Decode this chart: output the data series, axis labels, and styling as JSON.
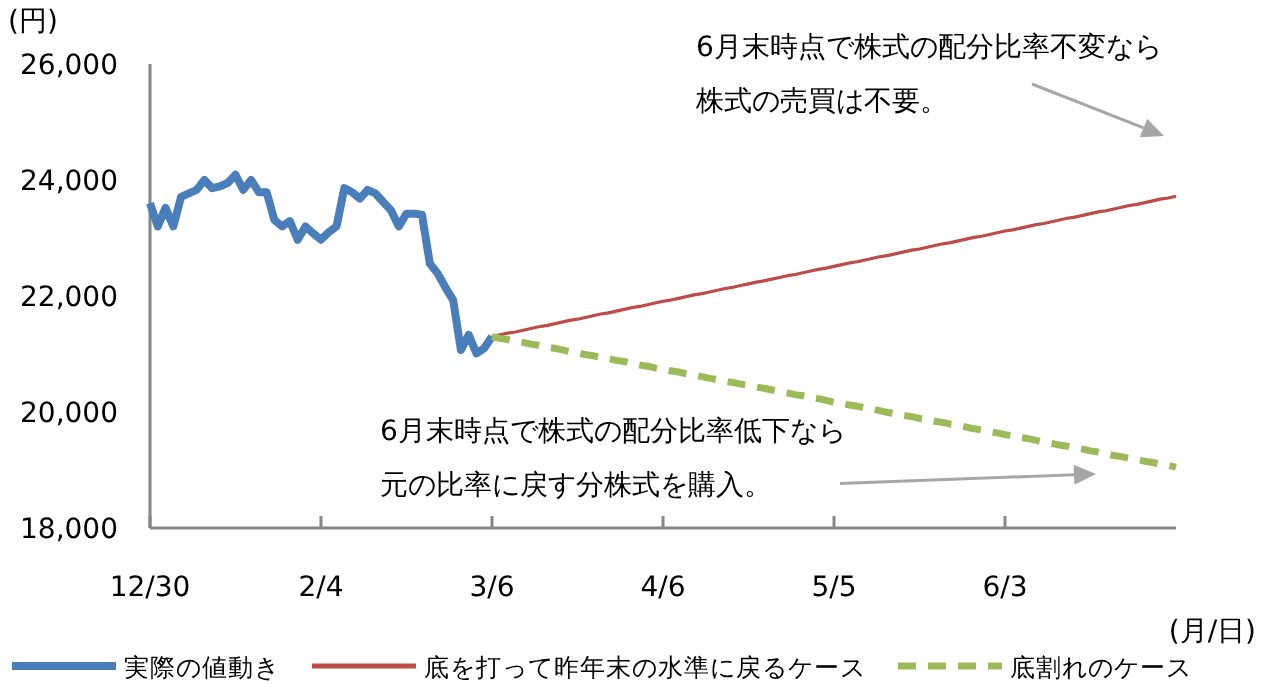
{
  "chart_data": {
    "type": "line",
    "ylabel": "(円)",
    "xlabel": "(月/日)",
    "categories": [
      "12/30",
      null,
      null,
      null,
      null,
      null,
      null,
      null,
      null,
      null,
      null,
      null,
      null,
      null,
      null,
      null,
      null,
      null,
      null,
      null,
      null,
      null,
      "2/4",
      null,
      null,
      null,
      null,
      null,
      null,
      null,
      null,
      null,
      null,
      null,
      null,
      null,
      null,
      null,
      null,
      null,
      null,
      null,
      null,
      null,
      "3/6",
      null,
      null,
      null,
      null,
      null,
      null,
      null,
      null,
      null,
      null,
      null,
      null,
      null,
      null,
      null,
      null,
      null,
      null,
      null,
      null,
      null,
      "4/6",
      null,
      null,
      null,
      null,
      null,
      null,
      null,
      null,
      null,
      null,
      null,
      null,
      null,
      null,
      null,
      null,
      null,
      null,
      null,
      null,
      null,
      "5/5",
      null,
      null,
      null,
      null,
      null,
      null,
      null,
      null,
      null,
      null,
      null,
      null,
      null,
      null,
      null,
      null,
      null,
      null,
      null,
      null,
      null,
      "6/3",
      null,
      null,
      null,
      null,
      null,
      null,
      null,
      null,
      null,
      null,
      null,
      null,
      null,
      null,
      null,
      null,
      null,
      null,
      null,
      null,
      null,
      null
    ],
    "ylim": [
      18000,
      26000
    ],
    "yticks": [
      {
        "value": 18000,
        "label": "18,000"
      },
      {
        "value": 20000,
        "label": "20,000"
      },
      {
        "value": 22000,
        "label": "22,000"
      },
      {
        "value": 24000,
        "label": "24,000"
      },
      {
        "value": 26000,
        "label": "26,000"
      }
    ],
    "legend": "bottom",
    "series": [
      {
        "name": "実際の値動き",
        "color": "#4a7ebb",
        "line_style": "solid",
        "values": [
          23600,
          23200,
          23520,
          23200,
          23710,
          23770,
          23830,
          24000,
          23860,
          23890,
          23950,
          24090,
          23830,
          24000,
          23790,
          23790,
          23310,
          23200,
          23290,
          22970,
          23200,
          23080,
          22970,
          23100,
          23200,
          23860,
          23790,
          23680,
          23830,
          23770,
          23620,
          23480,
          23200,
          23420,
          23420,
          23400,
          22560,
          22390,
          22150,
          21930,
          21070,
          21330,
          21010,
          21100,
          21300,
          null,
          null,
          null,
          null,
          null,
          null,
          null,
          null,
          null,
          null,
          null,
          null,
          null,
          null,
          null,
          null,
          null,
          null,
          null,
          null,
          null,
          null,
          null,
          null,
          null,
          null,
          null,
          null,
          null,
          null,
          null,
          null,
          null,
          null,
          null,
          null,
          null,
          null,
          null,
          null,
          null,
          null,
          null,
          null,
          null,
          null,
          null,
          null,
          null,
          null,
          null,
          null,
          null,
          null,
          null,
          null,
          null,
          null,
          null,
          null,
          null,
          null,
          null,
          null,
          null,
          null,
          null,
          null,
          null,
          null,
          null,
          null,
          null,
          null,
          null,
          null,
          null,
          null,
          null,
          null,
          null,
          null,
          null,
          null,
          null,
          null,
          null,
          null
        ]
      },
      {
        "name": "底を打って昨年末の水準に戻るケース",
        "color": "#be4b48",
        "line_style": "solid",
        "values": [
          null,
          null,
          null,
          null,
          null,
          null,
          null,
          null,
          null,
          null,
          null,
          null,
          null,
          null,
          null,
          null,
          null,
          null,
          null,
          null,
          null,
          null,
          null,
          null,
          null,
          null,
          null,
          null,
          null,
          null,
          null,
          null,
          null,
          null,
          null,
          null,
          null,
          null,
          null,
          null,
          null,
          null,
          null,
          null,
          21300,
          21330,
          21360,
          21380,
          21410,
          21440,
          21470,
          21490,
          21520,
          21550,
          21580,
          21600,
          21630,
          21660,
          21690,
          21710,
          21740,
          21770,
          21800,
          21820,
          21850,
          21880,
          21910,
          21930,
          21960,
          21990,
          22020,
          22040,
          22070,
          22100,
          22130,
          22150,
          22180,
          22210,
          22240,
          22260,
          22290,
          22320,
          22350,
          22370,
          22400,
          22430,
          22460,
          22480,
          22510,
          22540,
          22570,
          22590,
          22620,
          22650,
          22680,
          22700,
          22730,
          22760,
          22790,
          22810,
          22840,
          22870,
          22900,
          22920,
          22950,
          22980,
          23010,
          23030,
          23060,
          23090,
          23120,
          23140,
          23170,
          23200,
          23230,
          23250,
          23280,
          23310,
          23340,
          23360,
          23390,
          23420,
          23450,
          23470,
          23500,
          23530,
          23560,
          23580,
          23610,
          23640,
          23670,
          23690,
          23720
        ]
      },
      {
        "name": "底割れのケース",
        "color": "#9bbb59",
        "line_style": "dashed",
        "values": [
          null,
          null,
          null,
          null,
          null,
          null,
          null,
          null,
          null,
          null,
          null,
          null,
          null,
          null,
          null,
          null,
          null,
          null,
          null,
          null,
          null,
          null,
          null,
          null,
          null,
          null,
          null,
          null,
          null,
          null,
          null,
          null,
          null,
          null,
          null,
          null,
          null,
          null,
          null,
          null,
          null,
          null,
          null,
          null,
          21300,
          21270,
          21250,
          21220,
          21200,
          21170,
          21150,
          21120,
          21100,
          21070,
          21040,
          21020,
          20990,
          20970,
          20940,
          20920,
          20890,
          20870,
          20840,
          20810,
          20790,
          20760,
          20740,
          20710,
          20690,
          20660,
          20640,
          20610,
          20580,
          20560,
          20530,
          20510,
          20480,
          20460,
          20430,
          20410,
          20380,
          20350,
          20330,
          20300,
          20280,
          20250,
          20230,
          20200,
          20170,
          20150,
          20120,
          20100,
          20070,
          20050,
          20020,
          19990,
          19970,
          19940,
          19920,
          19890,
          19870,
          19840,
          19820,
          19790,
          19770,
          19740,
          19710,
          19690,
          19660,
          19640,
          19610,
          19590,
          19560,
          19540,
          19510,
          19480,
          19460,
          19430,
          19410,
          19380,
          19360,
          19330,
          19310,
          19280,
          19250,
          19230,
          19200,
          19180,
          19150,
          19130,
          19100,
          19080,
          19050
        ]
      }
    ],
    "annotations": [
      "6月末時点で株式の配分比率不変なら株式の売買は不要。",
      "6月末時点で株式の配分比率低下なら元の比率に戻す分株式を購入。"
    ]
  }
}
